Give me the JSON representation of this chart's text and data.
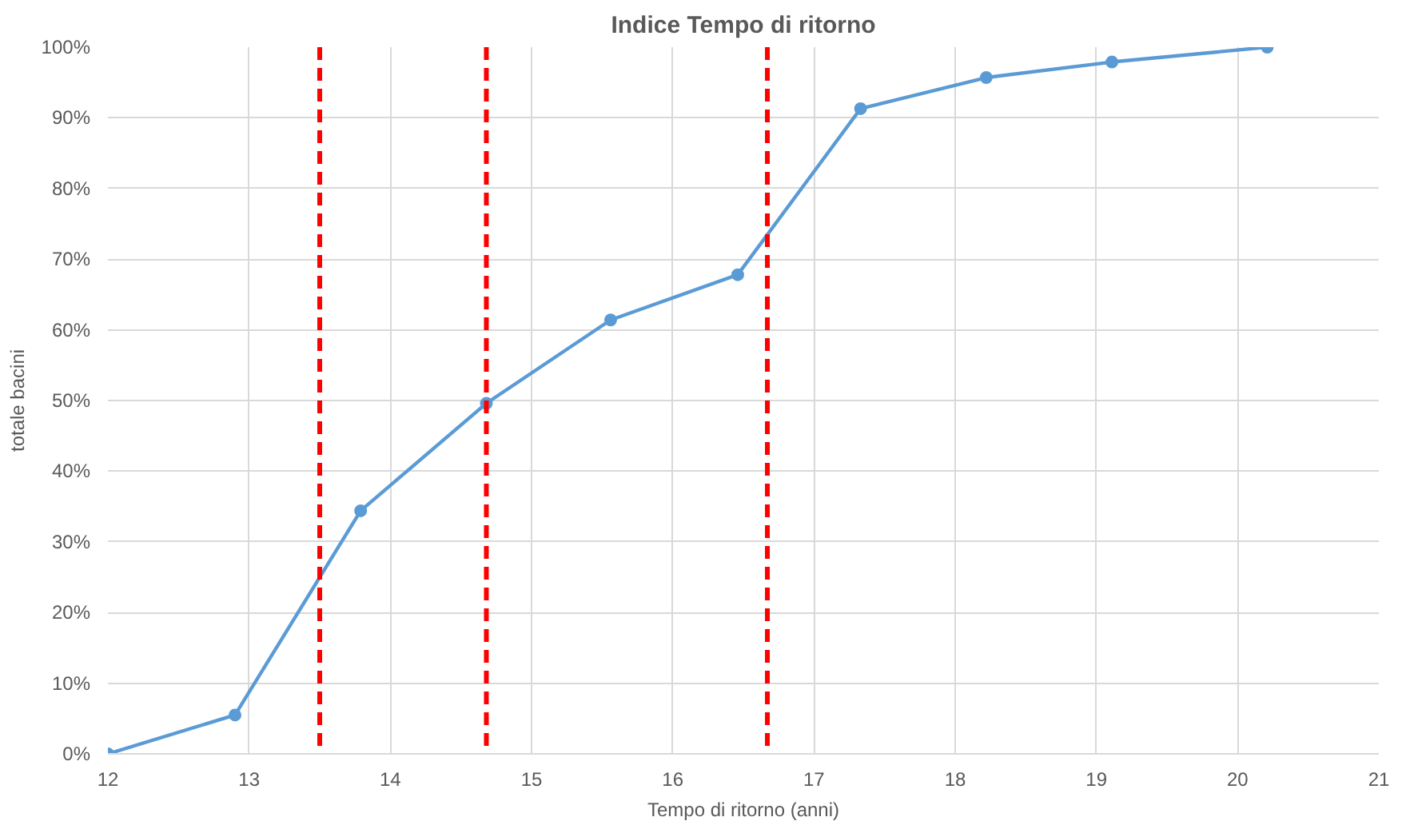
{
  "chart_data": {
    "type": "line",
    "title": "Indice Tempo di ritorno",
    "xlabel": "Tempo di ritorno (anni)",
    "ylabel": "totale bacini",
    "x": [
      12.0,
      12.9,
      13.79,
      14.68,
      15.56,
      16.46,
      17.33,
      18.22,
      19.11,
      20.21
    ],
    "series": [
      {
        "color": "#5b9bd5",
        "values": [
          0,
          5.5,
          34.4,
          49.6,
          61.4,
          67.8,
          91.3,
          95.7,
          97.9,
          100
        ]
      }
    ],
    "xlim": [
      12,
      21
    ],
    "xticks": [
      12,
      13,
      14,
      15,
      16,
      17,
      18,
      19,
      20,
      21
    ],
    "ylim": [
      0,
      100
    ],
    "yticks": [
      {
        "value": 0,
        "label": "0%"
      },
      {
        "value": 10,
        "label": "10%"
      },
      {
        "value": 20,
        "label": "20%"
      },
      {
        "value": 30,
        "label": "30%"
      },
      {
        "value": 40,
        "label": "40%"
      },
      {
        "value": 50,
        "label": "50%"
      },
      {
        "value": 60,
        "label": "60%"
      },
      {
        "value": 70,
        "label": "70%"
      },
      {
        "value": 80,
        "label": "80%"
      },
      {
        "value": 90,
        "label": "90%"
      },
      {
        "value": 100,
        "label": "100%"
      }
    ],
    "ref_lines": [
      {
        "axis": "x",
        "value": 13.5,
        "color": "#ff0000",
        "line_style": "dashed"
      },
      {
        "axis": "x",
        "value": 14.68,
        "color": "#ff0000",
        "line_style": "dashed"
      },
      {
        "axis": "x",
        "value": 16.67,
        "color": "#ff0000",
        "line_style": "dashed"
      }
    ],
    "grid": true,
    "marker": "circle",
    "line_style": "solid"
  }
}
